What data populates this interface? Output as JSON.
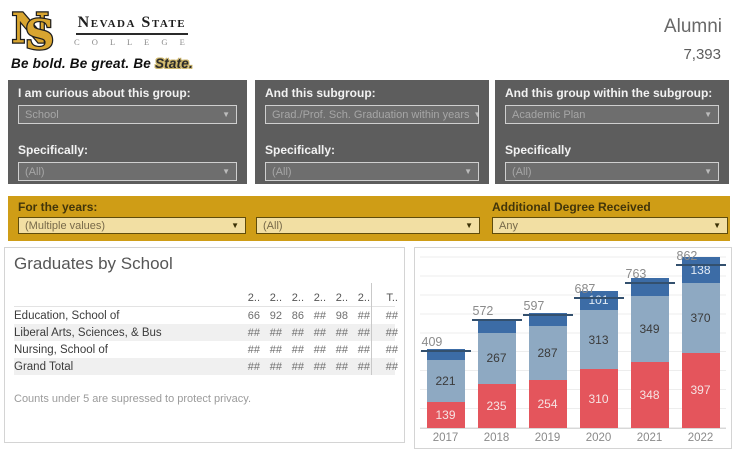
{
  "header": {
    "logo": {
      "monogram_n": "N",
      "monogram_s": "S",
      "name": "Nevada State",
      "college": "C O L L E G E"
    },
    "tagline_main": "Be bold. Be great. Be ",
    "tagline_accent": "State.",
    "title": "Alumni",
    "count": "7,393"
  },
  "filter_panels": [
    {
      "label": "I am curious about this group:",
      "value": "School",
      "sub_label": "Specifically:",
      "sub_value": "(All)"
    },
    {
      "label": "And this subgroup:",
      "value": "Grad./Prof. Sch. Graduation within years",
      "sub_label": "Specifically:",
      "sub_value": "(All)"
    },
    {
      "label": "And this group within the subgroup:",
      "value": "Academic Plan",
      "sub_label": "Specifically",
      "sub_value": "(All)"
    }
  ],
  "year_bar": {
    "label": "For the years:",
    "years_value": "(Multiple values)",
    "all_value": "(All)",
    "degree_label": "Additional Degree Received",
    "degree_value": "Any"
  },
  "table": {
    "title": "Graduates by School",
    "columns": [
      "2..",
      "2..",
      "2..",
      "2..",
      "2..",
      "2..",
      "T.."
    ],
    "rows": [
      {
        "label": "Education, School of",
        "values": [
          "66",
          "92",
          "86",
          "##",
          "98",
          "##",
          "##"
        ]
      },
      {
        "label": "Liberal Arts, Sciences, & Bus",
        "values": [
          "##",
          "##",
          "##",
          "##",
          "##",
          "##",
          "##"
        ]
      },
      {
        "label": "Nursing, School of",
        "values": [
          "##",
          "##",
          "##",
          "##",
          "##",
          "##",
          "##"
        ]
      },
      {
        "label": "Grand Total",
        "values": [
          "##",
          "##",
          "##",
          "##",
          "##",
          "##",
          "##"
        ]
      }
    ],
    "footnote": "Counts under 5 are supressed to protect privacy."
  },
  "chart_data": {
    "type": "bar",
    "stacked": true,
    "title": "",
    "categories": [
      "2017",
      "2018",
      "2019",
      "2020",
      "2021",
      "2022"
    ],
    "series": [
      {
        "name": "segment-bottom-red",
        "color": "#e4555c",
        "label_color": "#f6e3e3",
        "values": [
          139,
          235,
          254,
          310,
          348,
          397
        ],
        "labels": [
          "139",
          "235",
          "254",
          "310",
          "348",
          "397"
        ]
      },
      {
        "name": "segment-middle-steel",
        "color": "#8ea9c2",
        "label_color": "#3b3b3b",
        "values": [
          221,
          267,
          287,
          313,
          349,
          370
        ],
        "labels": [
          "221",
          "267",
          "287",
          "313",
          "349",
          "370"
        ]
      },
      {
        "name": "segment-top-darkblue",
        "color": "#3c6ca6",
        "label_color": "#e3ebf4",
        "values": [
          55,
          72,
          65,
          101,
          95,
          138
        ],
        "labels": [
          "",
          "",
          "",
          "101",
          "",
          "138"
        ]
      }
    ],
    "total_line": {
      "color": "#33506e",
      "values": [
        409,
        572,
        597,
        687,
        763,
        862
      ],
      "labels": [
        "409",
        "572",
        "597",
        "687",
        "763",
        "862"
      ]
    },
    "ylim": [
      0,
      950
    ],
    "gridline_step": 100,
    "legend": "none",
    "grid": "horizontal"
  },
  "colors": {
    "gold_bar": "#cf9d16",
    "panel_gray": "#5d5d5d",
    "bar_red": "#e4555c",
    "bar_steel": "#8ea9c2",
    "bar_dark_blue": "#3c6ca6",
    "total_line": "#33506e"
  }
}
